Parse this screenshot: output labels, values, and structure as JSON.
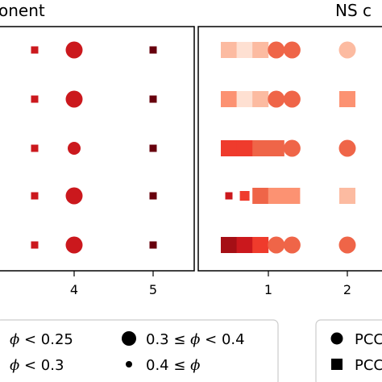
{
  "chart_data": [
    {
      "type": "scatter",
      "title": "onent",
      "xticks": [
        "4",
        "5"
      ],
      "rows": 5,
      "points": [
        {
          "x": 3.5,
          "row": 1,
          "shape": "square",
          "size_class": "small",
          "color": "#cb181d"
        },
        {
          "x": 4.0,
          "row": 1,
          "shape": "circle",
          "size_class": "large",
          "color": "#cb181d"
        },
        {
          "x": 5.0,
          "row": 1,
          "shape": "square",
          "size_class": "small",
          "color": "#67000d"
        },
        {
          "x": 3.5,
          "row": 2,
          "shape": "square",
          "size_class": "small",
          "color": "#cb181d"
        },
        {
          "x": 4.0,
          "row": 2,
          "shape": "circle",
          "size_class": "large",
          "color": "#cb181d"
        },
        {
          "x": 5.0,
          "row": 2,
          "shape": "square",
          "size_class": "small",
          "color": "#67000d"
        },
        {
          "x": 3.5,
          "row": 3,
          "shape": "square",
          "size_class": "small",
          "color": "#cb181d"
        },
        {
          "x": 4.0,
          "row": 3,
          "shape": "circle",
          "size_class": "medium",
          "color": "#cb181d"
        },
        {
          "x": 5.0,
          "row": 3,
          "shape": "square",
          "size_class": "small",
          "color": "#67000d"
        },
        {
          "x": 3.5,
          "row": 4,
          "shape": "square",
          "size_class": "small",
          "color": "#cb181d"
        },
        {
          "x": 4.0,
          "row": 4,
          "shape": "circle",
          "size_class": "large",
          "color": "#cb181d"
        },
        {
          "x": 5.0,
          "row": 4,
          "shape": "square",
          "size_class": "small",
          "color": "#67000d"
        },
        {
          "x": 3.5,
          "row": 5,
          "shape": "square",
          "size_class": "small",
          "color": "#cb181d"
        },
        {
          "x": 4.0,
          "row": 5,
          "shape": "circle",
          "size_class": "large",
          "color": "#cb181d"
        },
        {
          "x": 5.0,
          "row": 5,
          "shape": "square",
          "size_class": "small",
          "color": "#67000d"
        }
      ]
    },
    {
      "type": "scatter",
      "title": "NS c",
      "xticks": [
        "1",
        "2"
      ],
      "rows": 5,
      "points": [
        {
          "x": 0.5,
          "row": 1,
          "shape": "square",
          "size_class": "large",
          "color": "#fcbba1"
        },
        {
          "x": 0.7,
          "row": 1,
          "shape": "square",
          "size_class": "large",
          "color": "#fee0d2"
        },
        {
          "x": 0.9,
          "row": 1,
          "shape": "square",
          "size_class": "large",
          "color": "#fcbba1"
        },
        {
          "x": 1.1,
          "row": 1,
          "shape": "circle",
          "size_class": "large",
          "color": "#ef6548"
        },
        {
          "x": 1.3,
          "row": 1,
          "shape": "circle",
          "size_class": "large",
          "color": "#ef6548"
        },
        {
          "x": 2.0,
          "row": 1,
          "shape": "circle",
          "size_class": "large",
          "color": "#fcbba1"
        },
        {
          "x": 0.5,
          "row": 2,
          "shape": "square",
          "size_class": "large",
          "color": "#fc9272"
        },
        {
          "x": 0.7,
          "row": 2,
          "shape": "square",
          "size_class": "large",
          "color": "#fee0d2"
        },
        {
          "x": 0.9,
          "row": 2,
          "shape": "square",
          "size_class": "large",
          "color": "#fcbba1"
        },
        {
          "x": 1.1,
          "row": 2,
          "shape": "circle",
          "size_class": "large",
          "color": "#ef6548"
        },
        {
          "x": 1.3,
          "row": 2,
          "shape": "circle",
          "size_class": "large",
          "color": "#ef6548"
        },
        {
          "x": 2.0,
          "row": 2,
          "shape": "square",
          "size_class": "large",
          "color": "#fc9272"
        },
        {
          "x": 0.5,
          "row": 3,
          "shape": "square",
          "size_class": "large",
          "color": "#ef3b2c"
        },
        {
          "x": 0.7,
          "row": 3,
          "shape": "square",
          "size_class": "large",
          "color": "#ef3b2c"
        },
        {
          "x": 0.9,
          "row": 3,
          "shape": "square",
          "size_class": "large",
          "color": "#ef6548"
        },
        {
          "x": 1.1,
          "row": 3,
          "shape": "square",
          "size_class": "large",
          "color": "#ef6548"
        },
        {
          "x": 1.3,
          "row": 3,
          "shape": "circle",
          "size_class": "large",
          "color": "#ef6548"
        },
        {
          "x": 2.0,
          "row": 3,
          "shape": "circle",
          "size_class": "large",
          "color": "#ef6548"
        },
        {
          "x": 0.5,
          "row": 4,
          "shape": "square",
          "size_class": "small",
          "color": "#cb181d"
        },
        {
          "x": 0.7,
          "row": 4,
          "shape": "square",
          "size_class": "medium",
          "color": "#ef3b2c"
        },
        {
          "x": 0.9,
          "row": 4,
          "shape": "square",
          "size_class": "large",
          "color": "#ef6548"
        },
        {
          "x": 1.1,
          "row": 4,
          "shape": "square",
          "size_class": "large",
          "color": "#fc9272"
        },
        {
          "x": 1.3,
          "row": 4,
          "shape": "square",
          "size_class": "large",
          "color": "#fc9272"
        },
        {
          "x": 2.0,
          "row": 4,
          "shape": "square",
          "size_class": "large",
          "color": "#fcbba1"
        },
        {
          "x": 0.5,
          "row": 5,
          "shape": "square",
          "size_class": "large",
          "color": "#a50f15"
        },
        {
          "x": 0.7,
          "row": 5,
          "shape": "square",
          "size_class": "large",
          "color": "#cb181d"
        },
        {
          "x": 0.9,
          "row": 5,
          "shape": "square",
          "size_class": "large",
          "color": "#ef3b2c"
        },
        {
          "x": 1.1,
          "row": 5,
          "shape": "circle",
          "size_class": "large",
          "color": "#ef6548"
        },
        {
          "x": 1.3,
          "row": 5,
          "shape": "circle",
          "size_class": "large",
          "color": "#ef6548"
        },
        {
          "x": 2.0,
          "row": 5,
          "shape": "circle",
          "size_class": "large",
          "color": "#ef6548"
        }
      ]
    }
  ],
  "legend_size": {
    "items": [
      {
        "symbol": "none",
        "pre": "",
        "phi": "ϕ",
        "post": " < 0.25"
      },
      {
        "symbol": "large-dot",
        "pre": "0.3 ≤ ",
        "phi": "ϕ",
        "post": " < 0.4"
      },
      {
        "symbol": "none",
        "pre": "",
        "phi": "ϕ",
        "post": " < 0.3"
      },
      {
        "symbol": "small-dot",
        "pre": "0.4 ≤ ",
        "phi": "ϕ",
        "post": ""
      }
    ]
  },
  "legend_shape": {
    "items": [
      {
        "symbol": "circle",
        "label": "PCC"
      },
      {
        "symbol": "square",
        "label": "PCC"
      }
    ]
  }
}
